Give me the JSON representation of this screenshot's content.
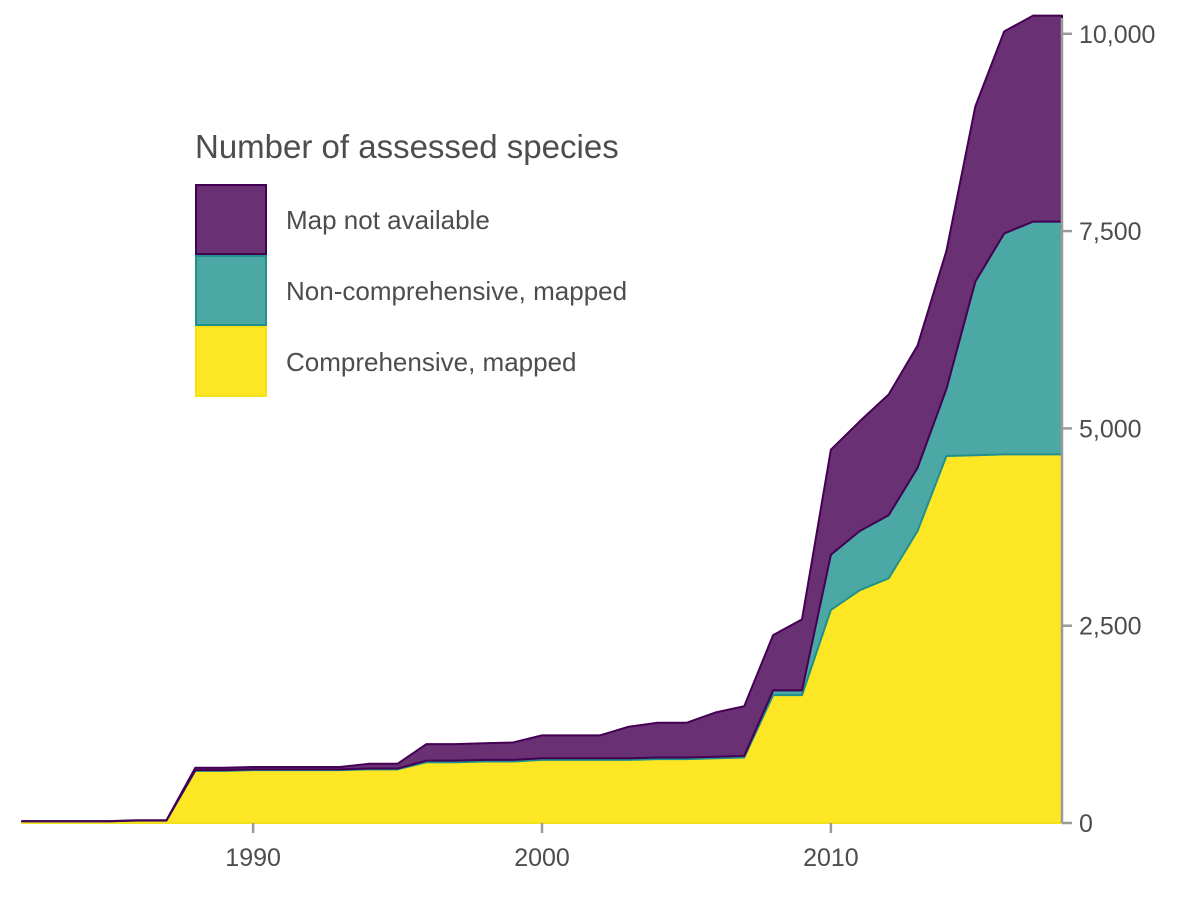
{
  "chart_data": {
    "type": "area",
    "stacked": true,
    "title": "",
    "xlabel": "",
    "ylabel": "",
    "xlim": [
      1982,
      2018
    ],
    "ylim": [
      0,
      10200
    ],
    "x_ticks": [
      1990,
      2000,
      2010
    ],
    "y_ticks": [
      0,
      2500,
      5000,
      7500,
      10000
    ],
    "y_tick_labels": [
      "0",
      "2,500",
      "5,000",
      "7,500",
      "10,000"
    ],
    "y_axis_position": "right",
    "grid": false,
    "legend": {
      "title": "Number of assessed species",
      "placement": "top-left"
    },
    "x": [
      1982,
      1983,
      1984,
      1985,
      1986,
      1987,
      1988,
      1989,
      1990,
      1991,
      1992,
      1993,
      1994,
      1995,
      1996,
      1997,
      1998,
      1999,
      2000,
      2001,
      2002,
      2003,
      2004,
      2005,
      2006,
      2007,
      2008,
      2009,
      2010,
      2011,
      2012,
      2013,
      2014,
      2015,
      2016,
      2017,
      2018
    ],
    "series": [
      {
        "name": "Comprehensive, mapped",
        "color": "#fde725",
        "stroke": "#f2e11b",
        "values": [
          20,
          20,
          20,
          20,
          30,
          30,
          660,
          660,
          670,
          670,
          670,
          670,
          680,
          680,
          770,
          770,
          780,
          780,
          800,
          800,
          800,
          800,
          810,
          810,
          820,
          830,
          1620,
          1620,
          2700,
          2950,
          3100,
          3700,
          4650,
          4660,
          4670,
          4670,
          4670
        ]
      },
      {
        "name": "Non-comprehensive, mapped",
        "color": "#4ca8a5",
        "stroke": "#21908c",
        "values": [
          2,
          2,
          2,
          2,
          2,
          2,
          10,
          10,
          10,
          10,
          10,
          10,
          10,
          10,
          20,
          20,
          20,
          20,
          20,
          20,
          20,
          20,
          20,
          20,
          20,
          20,
          60,
          60,
          700,
          750,
          800,
          800,
          850,
          2200,
          2800,
          2950,
          2950
        ]
      },
      {
        "name": "Map not available",
        "color": "#693174",
        "stroke": "#440154",
        "values": [
          2,
          2,
          2,
          2,
          3,
          3,
          30,
          30,
          30,
          30,
          30,
          30,
          60,
          60,
          210,
          210,
          210,
          220,
          290,
          290,
          290,
          400,
          440,
          440,
          560,
          630,
          700,
          900,
          1330,
          1390,
          1530,
          1550,
          1750,
          2220,
          2560,
          2610,
          2610
        ]
      }
    ]
  }
}
